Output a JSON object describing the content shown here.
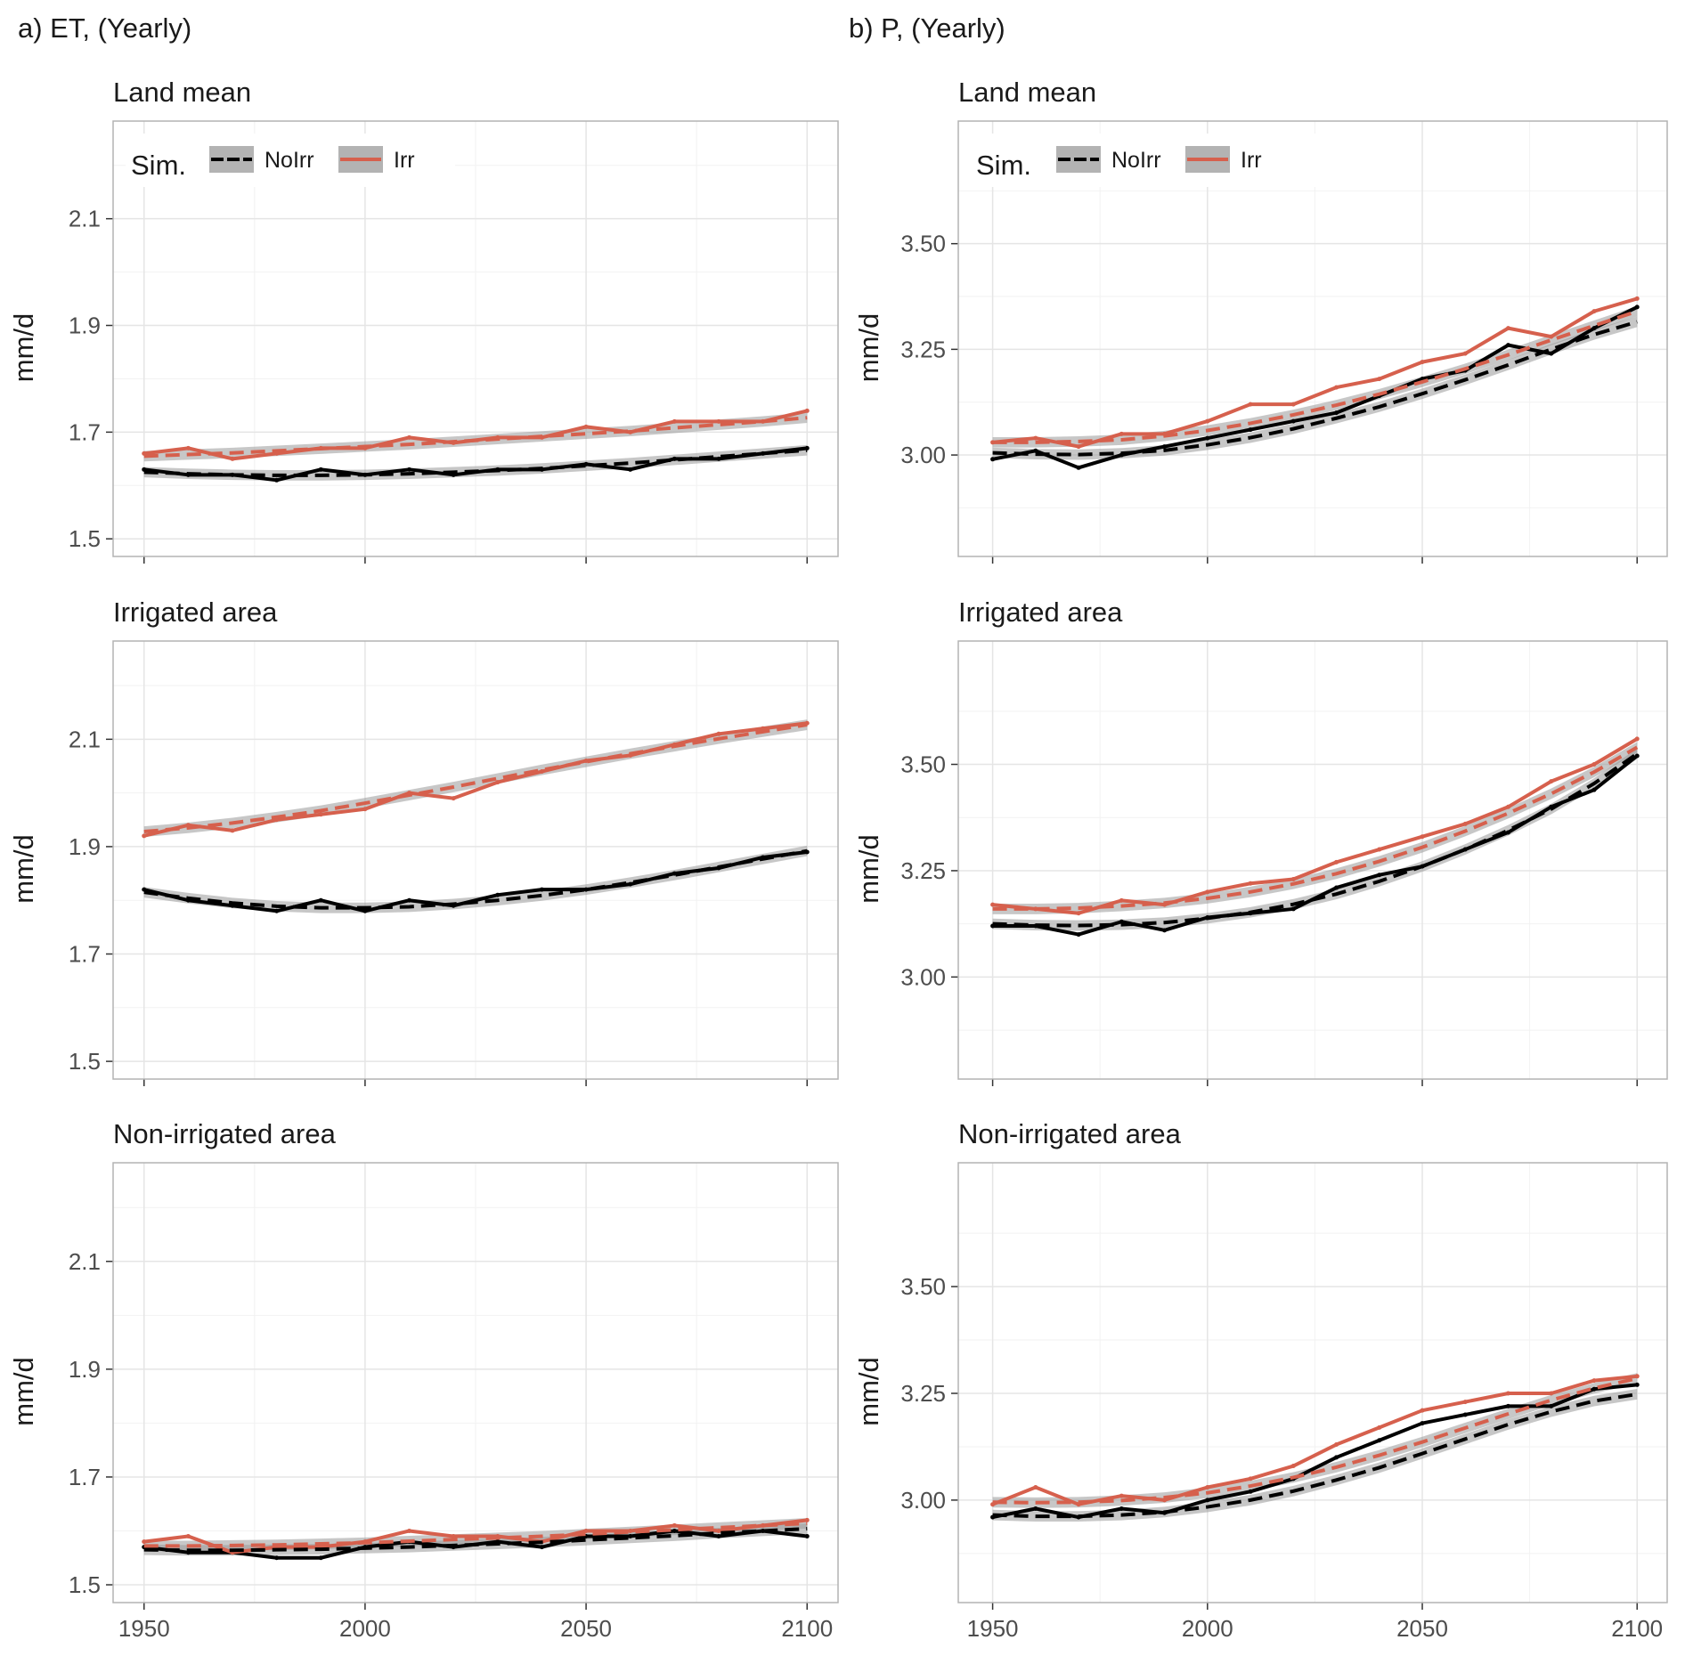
{
  "columns": [
    {
      "title": "a) ET, (Yearly)"
    },
    {
      "title": "b) P, (Yearly)"
    }
  ],
  "legend": {
    "title": "Sim.",
    "items": [
      {
        "label": "NoIrr",
        "color": "#000000"
      },
      {
        "label": "Irr",
        "color": "#d6604d"
      }
    ]
  },
  "colors": {
    "NoIrr": "#000000",
    "Irr": "#d6604d",
    "trend_band": "#999999",
    "grid": "#e5e5e5",
    "panel_border": "#b3b3b3"
  },
  "chart_data": [
    {
      "type": "line",
      "title": "Land mean",
      "ylabel": "mm/d",
      "xlabel": "",
      "xlim": [
        1943,
        2107
      ],
      "ylim": [
        1.467,
        2.283
      ],
      "xticks": [
        "1950",
        "2000",
        "2050",
        "2100"
      ],
      "yticks": [
        "1.5",
        "1.7",
        "1.9",
        "2.1"
      ],
      "legend": "top-left",
      "x": [
        1950,
        1960,
        1970,
        1980,
        1990,
        2000,
        2010,
        2020,
        2030,
        2040,
        2050,
        2060,
        2070,
        2080,
        2090,
        2100
      ],
      "series": [
        {
          "name": "NoIrr",
          "values": [
            1.63,
            1.62,
            1.62,
            1.61,
            1.63,
            1.62,
            1.63,
            1.62,
            1.63,
            1.63,
            1.64,
            1.63,
            1.65,
            1.65,
            1.66,
            1.67
          ],
          "trend": [
            1.625,
            1.622,
            1.62,
            1.619,
            1.619,
            1.62,
            1.622,
            1.625,
            1.628,
            1.632,
            1.637,
            1.642,
            1.648,
            1.654,
            1.66,
            1.666
          ]
        },
        {
          "name": "Irr",
          "values": [
            1.66,
            1.67,
            1.65,
            1.66,
            1.67,
            1.67,
            1.69,
            1.68,
            1.69,
            1.69,
            1.71,
            1.7,
            1.72,
            1.72,
            1.72,
            1.74
          ],
          "trend": [
            1.655,
            1.658,
            1.661,
            1.665,
            1.669,
            1.673,
            1.677,
            1.682,
            1.687,
            1.692,
            1.697,
            1.702,
            1.708,
            1.714,
            1.72,
            1.727
          ]
        }
      ]
    },
    {
      "type": "line",
      "title": "Land mean",
      "ylabel": "mm/d",
      "xlabel": "",
      "xlim": [
        1942,
        2107
      ],
      "ylim": [
        2.76,
        3.79
      ],
      "xticks": [
        "1950",
        "2000",
        "2050",
        "2100"
      ],
      "yticks": [
        "3.00",
        "3.25",
        "3.50"
      ],
      "legend": "top-left",
      "x": [
        1950,
        1960,
        1970,
        1980,
        1990,
        2000,
        2010,
        2020,
        2030,
        2040,
        2050,
        2060,
        2070,
        2080,
        2090,
        2100
      ],
      "series": [
        {
          "name": "NoIrr",
          "values": [
            2.99,
            3.01,
            2.97,
            3.0,
            3.02,
            3.04,
            3.06,
            3.08,
            3.1,
            3.14,
            3.18,
            3.2,
            3.26,
            3.24,
            3.3,
            3.35
          ],
          "trend": [
            3.005,
            3.002,
            3.001,
            3.004,
            3.011,
            3.024,
            3.041,
            3.062,
            3.087,
            3.114,
            3.145,
            3.178,
            3.213,
            3.25,
            3.285,
            3.315
          ]
        },
        {
          "name": "Irr",
          "values": [
            3.03,
            3.04,
            3.02,
            3.05,
            3.05,
            3.08,
            3.12,
            3.12,
            3.16,
            3.18,
            3.22,
            3.24,
            3.3,
            3.28,
            3.34,
            3.37
          ],
          "trend": [
            3.03,
            3.03,
            3.032,
            3.036,
            3.045,
            3.058,
            3.075,
            3.095,
            3.118,
            3.144,
            3.173,
            3.204,
            3.237,
            3.272,
            3.306,
            3.34
          ]
        }
      ]
    },
    {
      "type": "line",
      "title": "Irrigated area",
      "ylabel": "mm/d",
      "xlabel": "",
      "xlim": [
        1943,
        2107
      ],
      "ylim": [
        1.467,
        2.283
      ],
      "xticks": [
        "1950",
        "2000",
        "2050",
        "2100"
      ],
      "yticks": [
        "1.5",
        "1.7",
        "1.9",
        "2.1"
      ],
      "legend": "none",
      "x": [
        1950,
        1960,
        1970,
        1980,
        1990,
        2000,
        2010,
        2020,
        2030,
        2040,
        2050,
        2060,
        2070,
        2080,
        2090,
        2100
      ],
      "series": [
        {
          "name": "NoIrr",
          "values": [
            1.82,
            1.8,
            1.79,
            1.78,
            1.8,
            1.78,
            1.8,
            1.79,
            1.81,
            1.82,
            1.82,
            1.83,
            1.85,
            1.86,
            1.88,
            1.89
          ],
          "trend": [
            1.815,
            1.804,
            1.795,
            1.789,
            1.786,
            1.786,
            1.788,
            1.793,
            1.8,
            1.809,
            1.82,
            1.833,
            1.847,
            1.862,
            1.877,
            1.892
          ]
        },
        {
          "name": "Irr",
          "values": [
            1.92,
            1.94,
            1.93,
            1.95,
            1.96,
            1.97,
            2.0,
            1.99,
            2.02,
            2.04,
            2.06,
            2.07,
            2.09,
            2.11,
            2.12,
            2.13
          ],
          "trend": [
            1.928,
            1.935,
            1.944,
            1.955,
            1.967,
            1.981,
            1.996,
            2.011,
            2.027,
            2.043,
            2.058,
            2.073,
            2.087,
            2.101,
            2.114,
            2.127
          ]
        }
      ]
    },
    {
      "type": "line",
      "title": "Irrigated area",
      "ylabel": "mm/d",
      "xlabel": "",
      "xlim": [
        1942,
        2107
      ],
      "ylim": [
        2.76,
        3.79
      ],
      "xticks": [
        "1950",
        "2000",
        "2050",
        "2100"
      ],
      "yticks": [
        "3.00",
        "3.25",
        "3.50"
      ],
      "legend": "none",
      "x": [
        1950,
        1960,
        1970,
        1980,
        1990,
        2000,
        2010,
        2020,
        2030,
        2040,
        2050,
        2060,
        2070,
        2080,
        2090,
        2100
      ],
      "series": [
        {
          "name": "NoIrr",
          "values": [
            3.12,
            3.12,
            3.1,
            3.13,
            3.11,
            3.14,
            3.15,
            3.16,
            3.21,
            3.24,
            3.26,
            3.3,
            3.34,
            3.4,
            3.44,
            3.52
          ],
          "trend": [
            3.125,
            3.122,
            3.121,
            3.123,
            3.128,
            3.138,
            3.152,
            3.171,
            3.195,
            3.225,
            3.26,
            3.3,
            3.345,
            3.395,
            3.455,
            3.525
          ]
        },
        {
          "name": "Irr",
          "values": [
            3.17,
            3.16,
            3.15,
            3.18,
            3.17,
            3.2,
            3.22,
            3.23,
            3.27,
            3.3,
            3.33,
            3.36,
            3.4,
            3.46,
            3.5,
            3.56
          ],
          "trend": [
            3.16,
            3.16,
            3.162,
            3.167,
            3.174,
            3.185,
            3.2,
            3.219,
            3.243,
            3.272,
            3.305,
            3.343,
            3.385,
            3.431,
            3.482,
            3.54
          ]
        }
      ]
    },
    {
      "type": "line",
      "title": "Non-irrigated area",
      "ylabel": "mm/d",
      "xlabel": "",
      "xlim": [
        1943,
        2107
      ],
      "ylim": [
        1.467,
        2.283
      ],
      "xticks": [
        "1950",
        "2000",
        "2050",
        "2100"
      ],
      "yticks": [
        "1.5",
        "1.7",
        "1.9",
        "2.1"
      ],
      "legend": "none",
      "x": [
        1950,
        1960,
        1970,
        1980,
        1990,
        2000,
        2010,
        2020,
        2030,
        2040,
        2050,
        2060,
        2070,
        2080,
        2090,
        2100
      ],
      "series": [
        {
          "name": "NoIrr",
          "values": [
            1.57,
            1.56,
            1.56,
            1.55,
            1.55,
            1.57,
            1.58,
            1.57,
            1.58,
            1.57,
            1.59,
            1.59,
            1.6,
            1.59,
            1.6,
            1.59
          ],
          "trend": [
            1.565,
            1.564,
            1.564,
            1.565,
            1.566,
            1.568,
            1.57,
            1.573,
            1.576,
            1.579,
            1.583,
            1.587,
            1.591,
            1.596,
            1.6,
            1.604
          ]
        },
        {
          "name": "Irr",
          "values": [
            1.58,
            1.59,
            1.56,
            1.57,
            1.57,
            1.58,
            1.6,
            1.59,
            1.59,
            1.58,
            1.6,
            1.6,
            1.61,
            1.6,
            1.61,
            1.62
          ],
          "trend": [
            1.572,
            1.572,
            1.573,
            1.574,
            1.576,
            1.578,
            1.581,
            1.584,
            1.587,
            1.59,
            1.594,
            1.598,
            1.602,
            1.606,
            1.61,
            1.614
          ]
        }
      ]
    },
    {
      "type": "line",
      "title": "Non-irrigated area",
      "ylabel": "mm/d",
      "xlabel": "",
      "xlim": [
        1942,
        2107
      ],
      "ylim": [
        2.76,
        3.79
      ],
      "xticks": [
        "1950",
        "2000",
        "2050",
        "2100"
      ],
      "yticks": [
        "3.00",
        "3.25",
        "3.50"
      ],
      "legend": "none",
      "x": [
        1950,
        1960,
        1970,
        1980,
        1990,
        2000,
        2010,
        2020,
        2030,
        2040,
        2050,
        2060,
        2070,
        2080,
        2090,
        2100
      ],
      "series": [
        {
          "name": "NoIrr",
          "values": [
            2.96,
            2.98,
            2.96,
            2.98,
            2.97,
            3.0,
            3.02,
            3.05,
            3.1,
            3.14,
            3.18,
            3.2,
            3.22,
            3.22,
            3.26,
            3.27
          ],
          "trend": [
            2.965,
            2.962,
            2.962,
            2.965,
            2.972,
            2.984,
            3.0,
            3.021,
            3.047,
            3.076,
            3.109,
            3.143,
            3.177,
            3.207,
            3.232,
            3.248
          ]
        },
        {
          "name": "Irr",
          "values": [
            2.99,
            3.03,
            2.99,
            3.01,
            3.0,
            3.03,
            3.05,
            3.08,
            3.13,
            3.17,
            3.21,
            3.23,
            3.25,
            3.25,
            3.28,
            3.29
          ],
          "trend": [
            2.995,
            2.994,
            2.995,
            2.999,
            3.006,
            3.017,
            3.033,
            3.053,
            3.077,
            3.105,
            3.136,
            3.169,
            3.202,
            3.234,
            3.262,
            3.285
          ]
        }
      ]
    }
  ]
}
